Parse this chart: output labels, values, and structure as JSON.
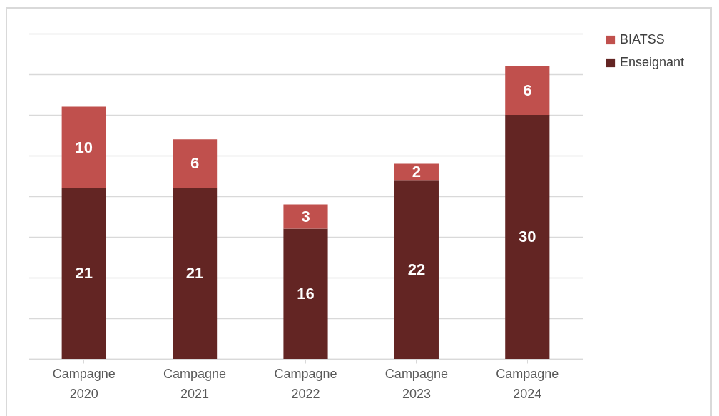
{
  "chart_data": {
    "type": "bar",
    "stacked": true,
    "categories": [
      "Campagne 2020",
      "Campagne 2021",
      "Campagne 2022",
      "Campagne 2023",
      "Campagne 2024"
    ],
    "series": [
      {
        "name": "Enseignant",
        "color": "#632523",
        "values": [
          21,
          21,
          16,
          22,
          30
        ]
      },
      {
        "name": "BIATSS",
        "color": "#c0504d",
        "values": [
          10,
          6,
          3,
          2,
          6
        ]
      }
    ],
    "ylim": [
      0,
      40
    ],
    "yticks": [
      {
        "value": 0,
        "label": null
      },
      {
        "value": 5,
        "label": null
      },
      {
        "value": 10,
        "label": null
      },
      {
        "value": 15,
        "label": null
      },
      {
        "value": 20,
        "label": null
      },
      {
        "value": 25,
        "label": null
      },
      {
        "value": 30,
        "label": null
      },
      {
        "value": 35,
        "label": null
      },
      {
        "value": 40,
        "label": null
      }
    ],
    "tick_labels": "x",
    "grid": "y",
    "legend": "right",
    "data_labels": true
  }
}
